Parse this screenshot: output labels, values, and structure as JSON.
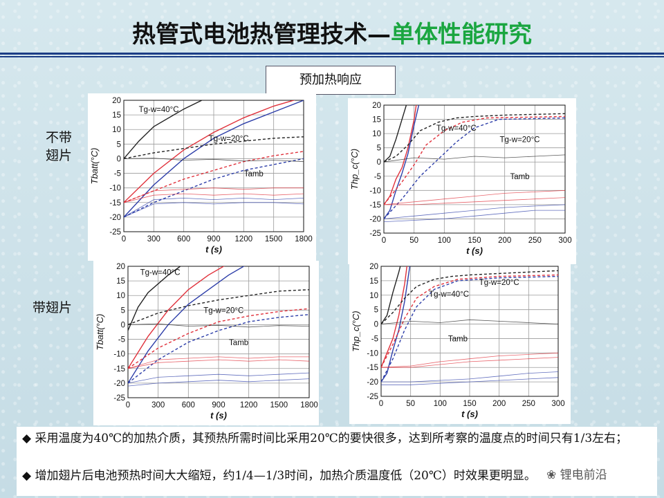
{
  "title": {
    "main": "热管式电池热管理技术",
    "dash": "—",
    "sub": "单体性能研究"
  },
  "badge": "预加热响应",
  "row_labels": {
    "top": "不带\n翅片",
    "bottom": "带翅片"
  },
  "notes": [
    "◆ 采用温度为40℃的加热介质，其预热所需时间比采用20℃的要快很多，达到所考察的温度点的时间只有1/3左右；",
    "◆ 增加翅片后电池预热时间大大缩短，约1/4—1/3时间，加热介质温度低（20℃）时效果更明显。"
  ],
  "watermark": "锂电前沿",
  "colors": {
    "black": "#222222",
    "red": "#e0303a",
    "blue": "#2c3da8",
    "grid": "#9a9a9a"
  },
  "chart_data": [
    {
      "type": "line",
      "id": "a",
      "xlabel": "t (s)",
      "ylabel": "Tbatt(°C)",
      "xlim": [
        0,
        1800
      ],
      "ylim": [
        -25,
        20
      ],
      "xticks": [
        0,
        300,
        600,
        900,
        1200,
        1500,
        1800
      ],
      "yticks": [
        -25,
        -20,
        -15,
        -10,
        -5,
        0,
        5,
        10,
        15,
        20
      ],
      "annotations": [
        {
          "text": "Tg-w=40°C",
          "x": 350,
          "y": 16
        },
        {
          "text": "Tg-w=20°C",
          "x": 1050,
          "y": 6
        },
        {
          "text": "Tamb",
          "x": 1300,
          "y": -6
        }
      ],
      "series": [
        {
          "color": "black",
          "dash": false,
          "x": [
            0,
            150,
            300,
            600,
            900
          ],
          "y": [
            0,
            6,
            11,
            17,
            22
          ]
        },
        {
          "color": "red",
          "dash": false,
          "x": [
            0,
            300,
            600,
            900,
            1200,
            1500,
            1800
          ],
          "y": [
            -15,
            -5,
            3,
            9,
            14,
            18,
            21
          ]
        },
        {
          "color": "blue",
          "dash": false,
          "x": [
            0,
            300,
            600,
            900,
            1200,
            1500,
            1800
          ],
          "y": [
            -20,
            -9,
            0,
            7,
            12,
            16,
            20
          ]
        },
        {
          "color": "black",
          "dash": true,
          "x": [
            0,
            300,
            600,
            900,
            1200,
            1500,
            1800
          ],
          "y": [
            0,
            2,
            3.5,
            5,
            6,
            7,
            7.5
          ]
        },
        {
          "color": "red",
          "dash": true,
          "x": [
            0,
            300,
            600,
            900,
            1200,
            1500,
            1800
          ],
          "y": [
            -15,
            -11,
            -7,
            -4,
            -1,
            1,
            2.5
          ]
        },
        {
          "color": "blue",
          "dash": true,
          "x": [
            0,
            300,
            600,
            900,
            1200,
            1500,
            1800
          ],
          "y": [
            -20,
            -15,
            -11,
            -7,
            -4,
            -2,
            0
          ]
        },
        {
          "color": "black",
          "dash": false,
          "thin": true,
          "x": [
            0,
            300,
            600,
            900,
            1200,
            1500,
            1800
          ],
          "y": [
            0,
            0.2,
            -0.5,
            -0.2,
            -0.8,
            -0.5,
            -1
          ]
        },
        {
          "color": "red",
          "dash": false,
          "thin": true,
          "x": [
            0,
            300,
            600,
            900,
            1200,
            1500,
            1800
          ],
          "y": [
            -15,
            -11,
            -10.5,
            -10,
            -10.5,
            -10,
            -10
          ]
        },
        {
          "color": "red",
          "dash": false,
          "thin": true,
          "x": [
            0,
            300,
            600,
            900,
            1200,
            1500,
            1800
          ],
          "y": [
            -15,
            -12.5,
            -12,
            -12.5,
            -12,
            -12.5,
            -12
          ]
        },
        {
          "color": "blue",
          "dash": false,
          "thin": true,
          "x": [
            0,
            300,
            600,
            900,
            1200,
            1500,
            1800
          ],
          "y": [
            -20,
            -14,
            -13.5,
            -14,
            -13.5,
            -14,
            -13.5
          ]
        },
        {
          "color": "blue",
          "dash": false,
          "thin": true,
          "x": [
            0,
            300,
            600,
            900,
            1200,
            1500,
            1800
          ],
          "y": [
            -20,
            -15.5,
            -15,
            -15.5,
            -15,
            -15,
            -15.5
          ]
        }
      ]
    },
    {
      "type": "line",
      "id": "b",
      "xlabel": "t (s)",
      "ylabel": "Thp_c(°C)",
      "xlim": [
        0,
        300
      ],
      "ylim": [
        -25,
        20
      ],
      "xticks": [
        0,
        50,
        100,
        150,
        200,
        250,
        300
      ],
      "yticks": [
        -25,
        -20,
        -15,
        -10,
        -5,
        0,
        5,
        10,
        15,
        20
      ],
      "annotations": [
        {
          "text": "Tg-w=40°C",
          "x": 120,
          "y": 11
        },
        {
          "text": "Tg-w=20°C",
          "x": 225,
          "y": 7
        },
        {
          "text": "Tamb",
          "x": 225,
          "y": -6
        }
      ],
      "series": [
        {
          "color": "black",
          "dash": false,
          "x": [
            0,
            10,
            20,
            30,
            40
          ],
          "y": [
            0,
            2,
            8,
            15,
            22
          ]
        },
        {
          "color": "red",
          "dash": false,
          "x": [
            0,
            10,
            20,
            30,
            40,
            50,
            55
          ],
          "y": [
            -15,
            -12,
            -6,
            -2,
            5,
            15,
            22
          ]
        },
        {
          "color": "blue",
          "dash": false,
          "x": [
            0,
            10,
            20,
            30,
            40,
            50,
            60
          ],
          "y": [
            -20,
            -17,
            -10,
            -4,
            3,
            13,
            22
          ]
        },
        {
          "color": "black",
          "dash": true,
          "x": [
            0,
            20,
            40,
            60,
            90,
            120,
            150,
            200,
            300
          ],
          "y": [
            0,
            2,
            6,
            11,
            14,
            15.5,
            16,
            16.5,
            17
          ]
        },
        {
          "color": "red",
          "dash": true,
          "x": [
            0,
            30,
            50,
            70,
            100,
            130,
            170,
            300
          ],
          "y": [
            -15,
            -7,
            -1,
            6,
            11,
            14,
            15.5,
            16
          ]
        },
        {
          "color": "blue",
          "dash": true,
          "x": [
            0,
            30,
            60,
            90,
            120,
            150,
            190,
            300
          ],
          "y": [
            -20,
            -13,
            -5,
            1,
            7,
            12,
            15,
            15.5
          ]
        },
        {
          "color": "black",
          "dash": false,
          "thin": true,
          "x": [
            0,
            50,
            100,
            150,
            200,
            250,
            300
          ],
          "y": [
            0,
            1.5,
            1,
            2,
            1.5,
            2,
            2.5
          ]
        },
        {
          "color": "red",
          "dash": false,
          "thin": true,
          "x": [
            0,
            50,
            100,
            150,
            200,
            250,
            300
          ],
          "y": [
            -15,
            -14,
            -13,
            -12,
            -11,
            -10.5,
            -10
          ]
        },
        {
          "color": "red",
          "dash": false,
          "thin": true,
          "x": [
            0,
            50,
            100,
            150,
            200,
            250,
            300
          ],
          "y": [
            -15,
            -15,
            -14.5,
            -14,
            -13.5,
            -13,
            -12.5
          ]
        },
        {
          "color": "blue",
          "dash": false,
          "thin": true,
          "x": [
            0,
            50,
            100,
            150,
            200,
            250,
            300
          ],
          "y": [
            -20,
            -19,
            -18,
            -17,
            -16,
            -15.5,
            -15
          ]
        },
        {
          "color": "blue",
          "dash": false,
          "thin": true,
          "x": [
            0,
            50,
            100,
            150,
            200,
            250,
            300
          ],
          "y": [
            -21,
            -20.5,
            -20,
            -19,
            -18,
            -17,
            -17
          ]
        }
      ]
    },
    {
      "type": "line",
      "id": "c",
      "xlabel": "t (s)",
      "ylabel": "Tbatt(°C)",
      "xlim": [
        0,
        1800
      ],
      "ylim": [
        -25,
        20
      ],
      "xticks": [
        0,
        300,
        600,
        900,
        1200,
        1500,
        1800
      ],
      "yticks": [
        -25,
        -20,
        -15,
        -10,
        -5,
        0,
        5,
        10,
        15,
        20
      ],
      "annotations": [
        {
          "text": "Tg-w=40°C",
          "x": 320,
          "y": 17
        },
        {
          "text": "Tg-w=20°C",
          "x": 950,
          "y": 4
        },
        {
          "text": "Tamb",
          "x": 1100,
          "y": -7
        }
      ],
      "series": [
        {
          "color": "black",
          "dash": false,
          "x": [
            0,
            100,
            200,
            400,
            600
          ],
          "y": [
            -2,
            6,
            11,
            17,
            22
          ]
        },
        {
          "color": "red",
          "dash": false,
          "x": [
            0,
            200,
            400,
            600,
            800,
            1000
          ],
          "y": [
            -15,
            -4,
            5,
            12,
            17,
            21
          ]
        },
        {
          "color": "blue",
          "dash": false,
          "x": [
            0,
            200,
            400,
            600,
            800,
            1000,
            1200
          ],
          "y": [
            -20,
            -9,
            0,
            7,
            12,
            17,
            21
          ]
        },
        {
          "color": "black",
          "dash": true,
          "x": [
            0,
            300,
            600,
            900,
            1200,
            1500,
            1800
          ],
          "y": [
            0,
            4,
            6.5,
            8.5,
            10,
            11.5,
            12
          ]
        },
        {
          "color": "red",
          "dash": true,
          "x": [
            0,
            300,
            600,
            900,
            1200,
            1500,
            1800
          ],
          "y": [
            -15,
            -8,
            -3,
            1,
            3,
            4.5,
            5.5
          ]
        },
        {
          "color": "blue",
          "dash": true,
          "x": [
            0,
            300,
            600,
            900,
            1200,
            1500,
            1800
          ],
          "y": [
            -20,
            -12,
            -6,
            -2,
            1,
            2.5,
            3.5
          ]
        },
        {
          "color": "black",
          "dash": false,
          "thin": true,
          "x": [
            0,
            300,
            600,
            900,
            1200,
            1500,
            1800
          ],
          "y": [
            0,
            0.3,
            -0.5,
            -0.2,
            -0.8,
            -0.3,
            -0.5
          ]
        },
        {
          "color": "red",
          "dash": false,
          "thin": true,
          "x": [
            0,
            300,
            600,
            900,
            1200,
            1500,
            1800
          ],
          "y": [
            -15,
            -13,
            -12.5,
            -12,
            -12.5,
            -12,
            -12.5
          ]
        },
        {
          "color": "red",
          "dash": false,
          "thin": true,
          "x": [
            0,
            300,
            600,
            900,
            1200,
            1500,
            1800
          ],
          "y": [
            -15,
            -12,
            -11.5,
            -11,
            -11.5,
            -11,
            -11
          ]
        },
        {
          "color": "blue",
          "dash": false,
          "thin": true,
          "x": [
            0,
            300,
            600,
            900,
            1200,
            1500,
            1800
          ],
          "y": [
            -20,
            -18,
            -17.5,
            -17,
            -17.5,
            -17,
            -16.5
          ]
        },
        {
          "color": "blue",
          "dash": false,
          "thin": true,
          "x": [
            0,
            300,
            600,
            900,
            1200,
            1500,
            1800
          ],
          "y": [
            -21,
            -20,
            -19.5,
            -19,
            -19.5,
            -19,
            -18.5
          ]
        }
      ]
    },
    {
      "type": "line",
      "id": "d",
      "xlabel": "t (s)",
      "ylabel": "Thp_c(°C)",
      "xlim": [
        0,
        300
      ],
      "ylim": [
        -25,
        20
      ],
      "xticks": [
        0,
        50,
        100,
        150,
        200,
        250,
        300
      ],
      "yticks": [
        -25,
        -20,
        -15,
        -10,
        -5,
        0,
        5,
        10,
        15,
        20
      ],
      "annotations": [
        {
          "text": "Tg-w=20°C",
          "x": 200,
          "y": 13.5
        },
        {
          "text": "Tg-w=40°C",
          "x": 115,
          "y": 9.5
        },
        {
          "text": "Tamb",
          "x": 130,
          "y": -6
        }
      ],
      "series": [
        {
          "color": "black",
          "dash": false,
          "x": [
            0,
            10,
            20,
            30,
            35
          ],
          "y": [
            0,
            3,
            11,
            18,
            22
          ]
        },
        {
          "color": "red",
          "dash": false,
          "x": [
            0,
            10,
            20,
            30,
            40,
            45
          ],
          "y": [
            -15,
            -10,
            -5,
            3,
            14,
            22
          ]
        },
        {
          "color": "blue",
          "dash": false,
          "x": [
            0,
            10,
            20,
            30,
            40,
            50
          ],
          "y": [
            -20,
            -17,
            -9,
            -2,
            8,
            22
          ]
        },
        {
          "color": "black",
          "dash": true,
          "x": [
            0,
            20,
            40,
            60,
            90,
            120,
            150,
            200,
            300
          ],
          "y": [
            0,
            4,
            9,
            13,
            15.5,
            16.5,
            17,
            17.5,
            18.5
          ]
        },
        {
          "color": "red",
          "dash": true,
          "x": [
            0,
            20,
            40,
            60,
            90,
            130,
            200,
            300
          ],
          "y": [
            -15,
            -7,
            2,
            9,
            13,
            15.5,
            16.5,
            17
          ]
        },
        {
          "color": "blue",
          "dash": true,
          "x": [
            0,
            20,
            40,
            60,
            90,
            130,
            200,
            300
          ],
          "y": [
            -20,
            -12,
            -2,
            6,
            12,
            15,
            16,
            16.5
          ]
        },
        {
          "color": "black",
          "dash": false,
          "thin": true,
          "x": [
            0,
            50,
            100,
            150,
            200,
            250,
            300
          ],
          "y": [
            0,
            1,
            0.5,
            1.5,
            1,
            0.5,
            0
          ]
        },
        {
          "color": "red",
          "dash": false,
          "thin": true,
          "x": [
            0,
            50,
            100,
            150,
            200,
            250,
            300
          ],
          "y": [
            -15,
            -14.5,
            -13,
            -12,
            -11,
            -10.5,
            -10
          ]
        },
        {
          "color": "red",
          "dash": false,
          "thin": true,
          "x": [
            0,
            50,
            100,
            150,
            200,
            250,
            300
          ],
          "y": [
            -15,
            -15,
            -14,
            -13,
            -12.5,
            -12,
            -11.5
          ]
        },
        {
          "color": "blue",
          "dash": false,
          "thin": true,
          "x": [
            0,
            50,
            100,
            150,
            200,
            250,
            300
          ],
          "y": [
            -20,
            -20,
            -19.5,
            -19,
            -18,
            -17,
            -16.5
          ]
        },
        {
          "color": "blue",
          "dash": false,
          "thin": true,
          "x": [
            0,
            50,
            100,
            150,
            200,
            250,
            300
          ],
          "y": [
            -21,
            -21,
            -20.5,
            -20,
            -19.5,
            -19,
            -18.5
          ]
        }
      ]
    }
  ]
}
